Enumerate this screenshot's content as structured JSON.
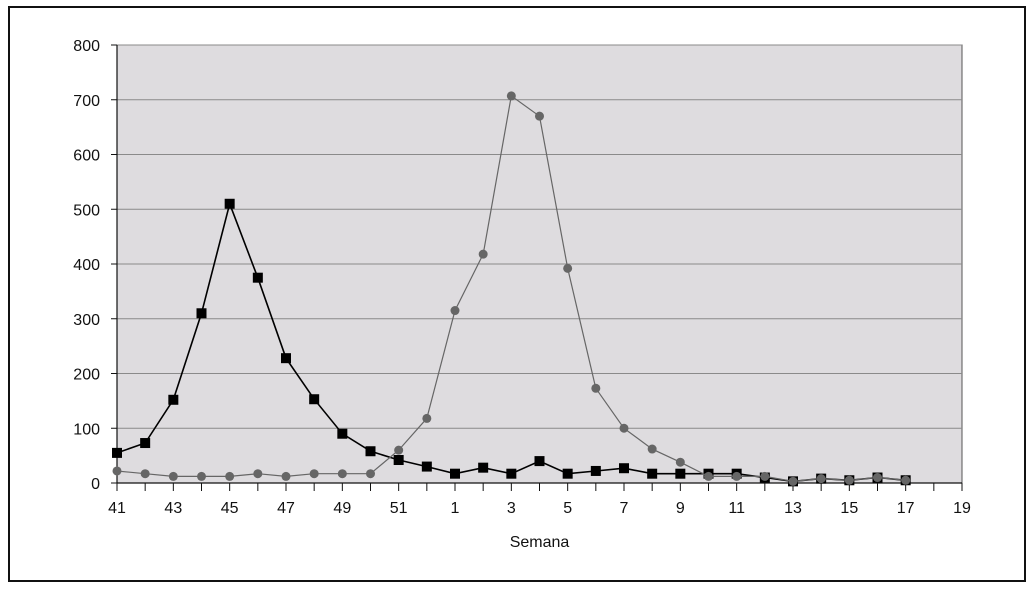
{
  "chart_data": {
    "type": "line",
    "title": "",
    "xlabel": "Semana",
    "ylabel": "",
    "ylim": [
      0,
      800
    ],
    "yticks": [
      0,
      100,
      200,
      300,
      400,
      500,
      600,
      700,
      800
    ],
    "x_categories": [
      "41",
      "42",
      "43",
      "44",
      "45",
      "46",
      "47",
      "48",
      "49",
      "50",
      "51",
      "52",
      "1",
      "2",
      "3",
      "4",
      "5",
      "6",
      "7",
      "8",
      "9",
      "10",
      "11",
      "12",
      "13",
      "14",
      "15",
      "16",
      "17",
      "18",
      "19"
    ],
    "x_tick_labels": [
      "41",
      "43",
      "45",
      "47",
      "49",
      "51",
      "1",
      "3",
      "5",
      "7",
      "9",
      "11",
      "13",
      "15",
      "17",
      "19"
    ],
    "grid": true,
    "legend": "none",
    "series": [
      {
        "marker": "square",
        "color": "#000000",
        "values": [
          55,
          73,
          152,
          310,
          510,
          375,
          228,
          153,
          90,
          58,
          42,
          30,
          17,
          28,
          17,
          40,
          17,
          22,
          27,
          17,
          17,
          17,
          17,
          10,
          3,
          8,
          5,
          10,
          5
        ]
      },
      {
        "marker": "circle",
        "color": "#666666",
        "values": [
          22,
          17,
          12,
          12,
          12,
          17,
          12,
          17,
          17,
          17,
          60,
          118,
          315,
          418,
          707,
          670,
          392,
          173,
          100,
          62,
          38,
          12,
          12,
          12,
          3,
          8,
          5,
          10,
          5
        ]
      }
    ],
    "plot_background": "#dedcdf",
    "gridline_color": "#8a8a8a"
  }
}
